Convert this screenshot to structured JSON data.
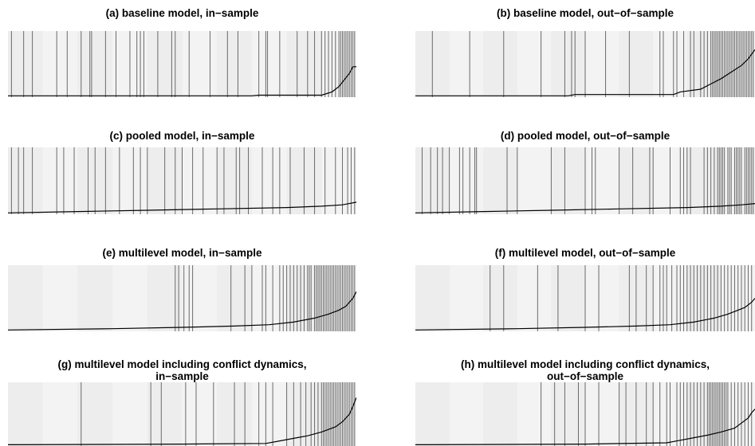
{
  "chart_data": [
    {
      "panel": "a",
      "type": "line",
      "title": "(a) baseline model, in−sample",
      "xlim": [
        0,
        1
      ],
      "ylim": [
        0,
        1
      ],
      "x": [
        0,
        0.7,
        0.72,
        0.9,
        0.93,
        0.95,
        0.965,
        0.98,
        0.99,
        1.0
      ],
      "y": [
        0.02,
        0.02,
        0.03,
        0.03,
        0.08,
        0.16,
        0.26,
        0.36,
        0.46,
        0.46
      ],
      "events": [
        0.01,
        0.045,
        0.07,
        0.14,
        0.17,
        0.21,
        0.235,
        0.24,
        0.28,
        0.31,
        0.35,
        0.37,
        0.38,
        0.39,
        0.43,
        0.47,
        0.48,
        0.52,
        0.58,
        0.63,
        0.66,
        0.72,
        0.74,
        0.745,
        0.78,
        0.83,
        0.86,
        0.88,
        0.9,
        0.91,
        0.92,
        0.93,
        0.94,
        0.95,
        0.955,
        0.96,
        0.965,
        0.97,
        0.975,
        0.98,
        0.985,
        0.99,
        0.995
      ]
    },
    {
      "panel": "b",
      "type": "line",
      "title": "(b) baseline model, out−of−sample",
      "xlim": [
        0,
        1
      ],
      "ylim": [
        0,
        1
      ],
      "x": [
        0,
        0.45,
        0.47,
        0.76,
        0.78,
        0.84,
        0.87,
        0.9,
        0.93,
        0.96,
        0.98,
        1.0
      ],
      "y": [
        0.02,
        0.02,
        0.04,
        0.04,
        0.08,
        0.12,
        0.2,
        0.28,
        0.38,
        0.48,
        0.58,
        0.72
      ],
      "events": [
        0.05,
        0.16,
        0.26,
        0.37,
        0.44,
        0.46,
        0.47,
        0.5,
        0.56,
        0.63,
        0.72,
        0.73,
        0.76,
        0.77,
        0.79,
        0.81,
        0.82,
        0.84,
        0.85,
        0.86,
        0.87,
        0.875,
        0.88,
        0.885,
        0.89,
        0.895,
        0.9,
        0.905,
        0.91,
        0.915,
        0.92,
        0.925,
        0.93,
        0.935,
        0.94,
        0.945,
        0.95,
        0.955,
        0.96,
        0.965,
        0.97,
        0.975,
        0.98,
        0.985,
        0.99,
        0.995
      ]
    },
    {
      "panel": "c",
      "type": "line",
      "title": "(c) pooled model, in−sample",
      "xlim": [
        0,
        1
      ],
      "ylim": [
        0,
        1
      ],
      "x": [
        0,
        0.2,
        0.4,
        0.6,
        0.8,
        0.9,
        0.96,
        1.0
      ],
      "y": [
        0.02,
        0.04,
        0.06,
        0.08,
        0.1,
        0.12,
        0.14,
        0.18
      ],
      "events": [
        0.01,
        0.03,
        0.045,
        0.07,
        0.14,
        0.16,
        0.19,
        0.23,
        0.25,
        0.28,
        0.32,
        0.36,
        0.38,
        0.4,
        0.45,
        0.48,
        0.5,
        0.53,
        0.56,
        0.6,
        0.62,
        0.655,
        0.665,
        0.69,
        0.73,
        0.76,
        0.78,
        0.81,
        0.85,
        0.88,
        0.91,
        0.94,
        0.96,
        0.975,
        0.985,
        0.995
      ]
    },
    {
      "panel": "d",
      "type": "line",
      "title": "(d) pooled model, out−of−sample",
      "xlim": [
        0,
        1
      ],
      "ylim": [
        0,
        1
      ],
      "x": [
        0,
        0.2,
        0.4,
        0.6,
        0.8,
        0.9,
        0.96,
        1.0
      ],
      "y": [
        0.02,
        0.04,
        0.06,
        0.08,
        0.1,
        0.12,
        0.14,
        0.16
      ],
      "events": [
        0.02,
        0.045,
        0.065,
        0.08,
        0.1,
        0.13,
        0.14,
        0.16,
        0.175,
        0.18,
        0.27,
        0.3,
        0.4,
        0.44,
        0.5,
        0.52,
        0.53,
        0.6,
        0.64,
        0.69,
        0.7,
        0.75,
        0.78,
        0.79,
        0.8,
        0.81,
        0.85,
        0.86,
        0.87,
        0.88,
        0.89,
        0.895,
        0.9,
        0.905,
        0.91,
        0.92,
        0.925,
        0.93,
        0.94,
        0.945,
        0.95,
        0.955,
        0.96,
        0.97,
        0.975,
        0.98,
        0.985,
        0.99,
        0.995
      ]
    },
    {
      "panel": "e",
      "type": "line",
      "title": "(e) multilevel model, in−sample",
      "xlim": [
        0,
        1
      ],
      "ylim": [
        0,
        1
      ],
      "x": [
        0,
        0.3,
        0.5,
        0.65,
        0.75,
        0.82,
        0.88,
        0.92,
        0.95,
        0.97,
        0.99,
        1.0
      ],
      "y": [
        0.02,
        0.04,
        0.06,
        0.08,
        0.1,
        0.14,
        0.2,
        0.26,
        0.32,
        0.38,
        0.5,
        0.6
      ],
      "events": [
        0.48,
        0.49,
        0.505,
        0.52,
        0.53,
        0.64,
        0.68,
        0.7,
        0.73,
        0.74,
        0.76,
        0.78,
        0.79,
        0.8,
        0.81,
        0.82,
        0.83,
        0.84,
        0.85,
        0.86,
        0.865,
        0.87,
        0.88,
        0.885,
        0.89,
        0.895,
        0.9,
        0.905,
        0.91,
        0.915,
        0.92,
        0.925,
        0.93,
        0.935,
        0.94,
        0.945,
        0.95,
        0.955,
        0.96,
        0.965,
        0.97,
        0.975,
        0.98,
        0.985,
        0.99,
        0.995
      ]
    },
    {
      "panel": "f",
      "type": "line",
      "title": "(f) multilevel model, out−of−sample",
      "xlim": [
        0,
        1
      ],
      "ylim": [
        0,
        1
      ],
      "x": [
        0,
        0.3,
        0.5,
        0.65,
        0.75,
        0.82,
        0.88,
        0.92,
        0.95,
        0.97,
        0.99,
        1.0
      ],
      "y": [
        0.02,
        0.04,
        0.06,
        0.08,
        0.1,
        0.14,
        0.2,
        0.26,
        0.32,
        0.36,
        0.44,
        0.5
      ],
      "events": [
        0.22,
        0.26,
        0.36,
        0.42,
        0.5,
        0.54,
        0.63,
        0.65,
        0.68,
        0.7,
        0.72,
        0.73,
        0.74,
        0.755,
        0.77,
        0.78,
        0.79,
        0.8,
        0.81,
        0.82,
        0.83,
        0.84,
        0.85,
        0.86,
        0.87,
        0.88,
        0.89,
        0.9,
        0.91,
        0.92,
        0.93,
        0.94,
        0.95,
        0.96,
        0.97,
        0.98,
        0.99
      ]
    },
    {
      "panel": "g",
      "type": "line",
      "title": "(g) multilevel model including conflict dynamics, in−sample",
      "title_lines": [
        "(g) multilevel model including conflict dynamics,",
        "in−sample"
      ],
      "xlim": [
        0,
        1
      ],
      "ylim": [
        0,
        1
      ],
      "x": [
        0,
        0.5,
        0.74,
        0.78,
        0.82,
        0.86,
        0.9,
        0.94,
        0.96,
        0.98,
        0.99,
        1.0
      ],
      "y": [
        0.02,
        0.03,
        0.04,
        0.08,
        0.12,
        0.16,
        0.22,
        0.3,
        0.38,
        0.5,
        0.62,
        0.76
      ],
      "events": [
        0.21,
        0.41,
        0.44,
        0.51,
        0.54,
        0.59,
        0.65,
        0.68,
        0.72,
        0.74,
        0.76,
        0.8,
        0.82,
        0.84,
        0.855,
        0.87,
        0.88,
        0.89,
        0.9,
        0.905,
        0.91,
        0.915,
        0.92,
        0.925,
        0.93,
        0.935,
        0.94,
        0.945,
        0.95,
        0.955,
        0.96,
        0.965,
        0.97,
        0.975,
        0.98,
        0.985,
        0.99,
        0.995
      ]
    },
    {
      "panel": "h",
      "type": "line",
      "title": "(h) multilevel model including conflict dynamics, out−of−sample",
      "title_lines": [
        "(h) multilevel model including conflict dynamics,",
        "out−of−sample"
      ],
      "xlim": [
        0,
        1
      ],
      "ylim": [
        0,
        1
      ],
      "x": [
        0,
        0.5,
        0.74,
        0.78,
        0.82,
        0.86,
        0.9,
        0.94,
        0.96,
        0.98,
        0.99,
        1.0
      ],
      "y": [
        0.02,
        0.03,
        0.05,
        0.09,
        0.13,
        0.17,
        0.22,
        0.28,
        0.36,
        0.44,
        0.52,
        0.58
      ],
      "events": [
        0.37,
        0.41,
        0.44,
        0.48,
        0.5,
        0.54,
        0.6,
        0.62,
        0.65,
        0.68,
        0.7,
        0.72,
        0.74,
        0.75,
        0.77,
        0.78,
        0.79,
        0.8,
        0.81,
        0.82,
        0.83,
        0.84,
        0.85,
        0.86,
        0.865,
        0.87,
        0.875,
        0.88,
        0.885,
        0.89,
        0.895,
        0.9,
        0.905,
        0.91,
        0.915,
        0.92,
        0.93,
        0.94,
        0.95,
        0.96,
        0.97,
        0.98,
        0.99
      ]
    }
  ]
}
